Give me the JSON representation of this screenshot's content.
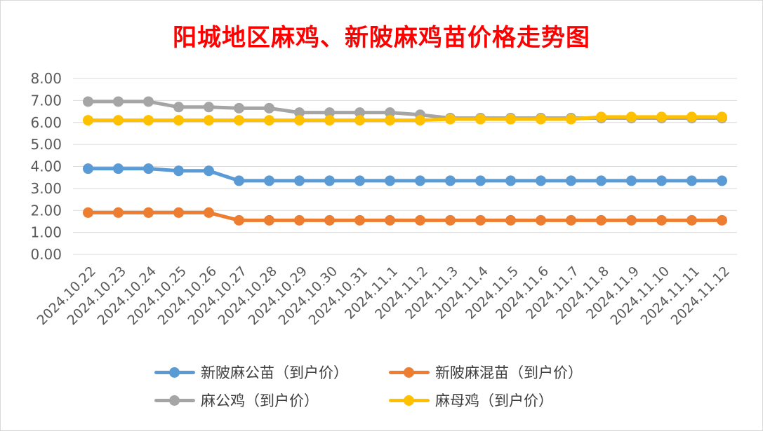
{
  "chart_data": {
    "type": "line",
    "title": "阳城地区麻鸡、新陂麻鸡苗价格走势图",
    "categories": [
      "2024.10.22",
      "2024.10.23",
      "2024.10.24",
      "2024.10.25",
      "2024.10.26",
      "2024.10.27",
      "2024.10.28",
      "2024.10.29",
      "2024.10.30",
      "2024.10.31",
      "2024.11.1",
      "2024.11.2",
      "2024.11.3",
      "2024.11.4",
      "2024.11.5",
      "2024.11.6",
      "2024.11.7",
      "2024.11.8",
      "2024.11.9",
      "2024.11.10",
      "2024.11.11",
      "2024.11.12"
    ],
    "ylim": [
      0,
      8
    ],
    "yticks": [
      "0.00",
      "1.00",
      "2.00",
      "3.00",
      "4.00",
      "5.00",
      "6.00",
      "7.00",
      "8.00"
    ],
    "grid": true,
    "legend_position": "bottom",
    "series": [
      {
        "name": "新陂麻公苗（到户价）",
        "color": "#5b9bd5",
        "values": [
          3.9,
          3.9,
          3.9,
          3.8,
          3.8,
          3.35,
          3.35,
          3.35,
          3.35,
          3.35,
          3.35,
          3.35,
          3.35,
          3.35,
          3.35,
          3.35,
          3.35,
          3.35,
          3.35,
          3.35,
          3.35,
          3.35
        ]
      },
      {
        "name": "新陂麻混苗（到户价）",
        "color": "#ed7d31",
        "values": [
          1.9,
          1.9,
          1.9,
          1.9,
          1.9,
          1.55,
          1.55,
          1.55,
          1.55,
          1.55,
          1.55,
          1.55,
          1.55,
          1.55,
          1.55,
          1.55,
          1.55,
          1.55,
          1.55,
          1.55,
          1.55,
          1.55
        ]
      },
      {
        "name": "麻公鸡（到户价）",
        "color": "#a5a5a5",
        "values": [
          6.95,
          6.95,
          6.95,
          6.7,
          6.7,
          6.65,
          6.65,
          6.45,
          6.45,
          6.45,
          6.45,
          6.35,
          6.2,
          6.2,
          6.2,
          6.2,
          6.2,
          6.2,
          6.2,
          6.2,
          6.2,
          6.2
        ]
      },
      {
        "name": "麻母鸡（到户价）",
        "color": "#ffc000",
        "values": [
          6.1,
          6.1,
          6.1,
          6.1,
          6.1,
          6.1,
          6.1,
          6.1,
          6.1,
          6.1,
          6.1,
          6.1,
          6.15,
          6.15,
          6.15,
          6.15,
          6.15,
          6.25,
          6.25,
          6.25,
          6.25,
          6.25
        ]
      }
    ]
  }
}
